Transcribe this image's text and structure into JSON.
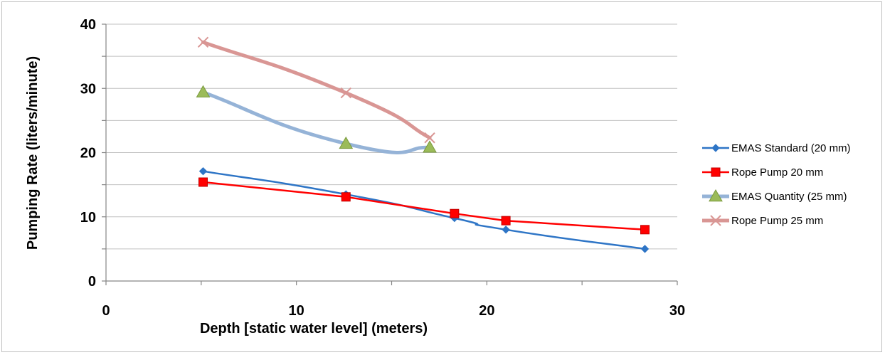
{
  "chart_data": {
    "type": "line",
    "title": "",
    "xlabel": "Depth [static water level] (meters)",
    "ylabel": "Pumping Rate (liters/minute)",
    "xlim": [
      0,
      30
    ],
    "ylim": [
      0,
      40
    ],
    "xticks": [
      "0",
      "10",
      "20",
      "30"
    ],
    "yticks": [
      "0",
      "10",
      "20",
      "30",
      "40"
    ],
    "x_tick_values": [
      0,
      10,
      20,
      30
    ],
    "y_tick_values": [
      0,
      10,
      20,
      30,
      40
    ],
    "grid": "horizontal",
    "legend_position": "right",
    "series": [
      {
        "name": "EMAS Standard (20 mm)",
        "color": "#2e75c6",
        "marker": "diamond",
        "smooth": true,
        "x": [
          5.1,
          12.6,
          18.3,
          21.0,
          28.3
        ],
        "y": [
          17.1,
          13.5,
          9.8,
          8.0,
          5.0
        ]
      },
      {
        "name": "Rope Pump 20 mm",
        "color": "#ff0000",
        "marker": "square",
        "smooth": false,
        "x": [
          5.1,
          12.6,
          18.3,
          21.0,
          28.3
        ],
        "y": [
          15.4,
          13.1,
          10.5,
          9.4,
          8.0
        ]
      },
      {
        "name": "EMAS Quantity (25 mm)",
        "color": "#95b3d7",
        "marker": "triangle",
        "marker_color": "#9bbb59",
        "smooth": true,
        "x": [
          5.1,
          12.6,
          17.0
        ],
        "y": [
          29.4,
          21.4,
          20.8
        ]
      },
      {
        "name": "Rope Pump 25 mm",
        "color": "#d99694",
        "marker": "x",
        "smooth": true,
        "x": [
          5.1,
          12.6,
          17.0
        ],
        "y": [
          37.2,
          29.3,
          22.3
        ]
      }
    ]
  }
}
